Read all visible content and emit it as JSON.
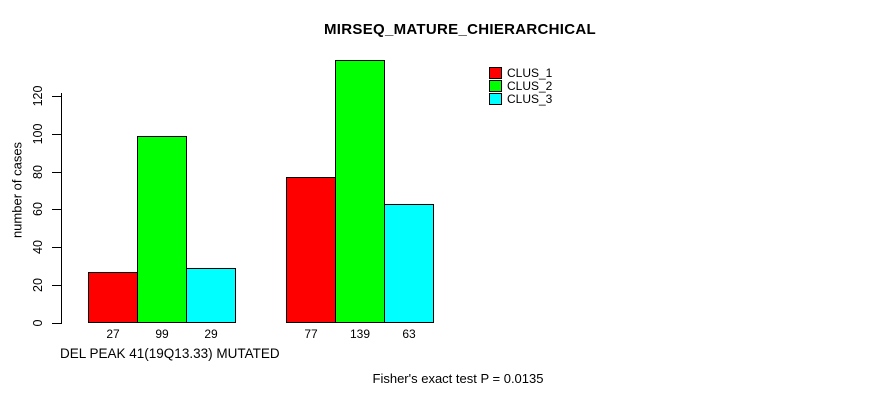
{
  "chart_data": {
    "type": "bar",
    "title": "MIRSEQ_MATURE_CHIERARCHICAL",
    "xlabel": "DEL PEAK 41(19Q13.33) MUTATED",
    "ylabel": "number of cases",
    "categories": [
      "DEL PEAK 41(19Q13.33) MUTATED",
      ""
    ],
    "series": [
      {
        "name": "CLUS_1",
        "color": "#ff0000",
        "values": [
          27,
          77
        ]
      },
      {
        "name": "CLUS_2",
        "color": "#00ff00",
        "values": [
          99,
          139
        ]
      },
      {
        "name": "CLUS_3",
        "color": "#00ffff",
        "values": [
          29,
          63
        ]
      }
    ],
    "yticks": [
      0,
      20,
      40,
      60,
      80,
      100,
      120
    ],
    "ylim": [
      0,
      139
    ],
    "bar_value_labels": [
      [
        27,
        99,
        29
      ],
      [
        77,
        139,
        63
      ]
    ],
    "grid": false,
    "legend_position": "top-right",
    "annotation": "Fisher's exact test P = 0.0135"
  }
}
